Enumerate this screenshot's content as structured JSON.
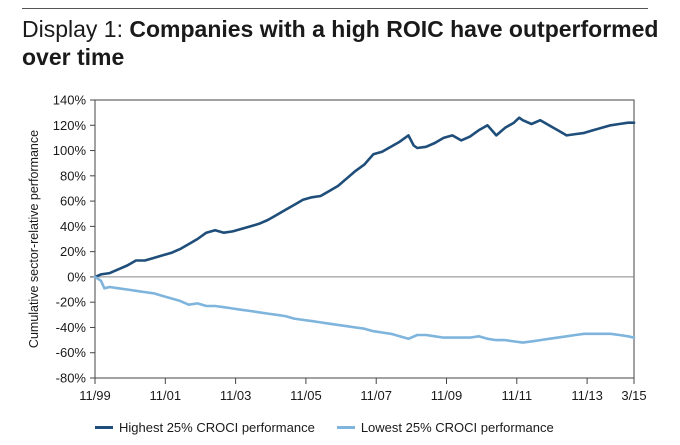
{
  "title": {
    "prefix": "Display 1: ",
    "main": "Companies with a high ROIC have outperformed over time"
  },
  "colors": {
    "highest": "#1e4e79",
    "lowest": "#7fb5dd",
    "axis": "#1a1a1a",
    "zero_line": "#888888"
  },
  "chart_data": {
    "type": "line",
    "title": "Companies with a high ROIC have outperformed over time",
    "xlabel": "",
    "ylabel": "Cumulative sector-relative performance",
    "x_range": [
      1999.833,
      2015.167
    ],
    "ylim": [
      -80,
      140
    ],
    "y_ticks": [
      140,
      120,
      100,
      80,
      60,
      40,
      20,
      0,
      -20,
      -40,
      -60,
      -80
    ],
    "y_tick_labels": [
      "140%",
      "120%",
      "100%",
      "80%",
      "60%",
      "40%",
      "20%",
      "0%",
      "-20%",
      "-40%",
      "-60%",
      "-80%"
    ],
    "x_ticks": [
      1999.833,
      2001.833,
      2003.833,
      2005.833,
      2007.833,
      2009.833,
      2011.833,
      2013.833,
      2015.167
    ],
    "x_tick_labels": [
      "11/99",
      "11/01",
      "11/03",
      "11/05",
      "11/07",
      "11/09",
      "11/11",
      "11/13",
      "3/15"
    ],
    "grid": false,
    "legend_position": "bottom",
    "series": [
      {
        "name": "Highest 25% CROCI performance",
        "x": [
          1999.833,
          2000.0,
          2000.25,
          2000.5,
          2000.75,
          2001.0,
          2001.25,
          2001.5,
          2001.75,
          2002.0,
          2002.25,
          2002.5,
          2002.75,
          2003.0,
          2003.25,
          2003.5,
          2003.75,
          2004.0,
          2004.25,
          2004.5,
          2004.75,
          2005.0,
          2005.25,
          2005.5,
          2005.75,
          2006.0,
          2006.25,
          2006.5,
          2006.75,
          2007.0,
          2007.25,
          2007.5,
          2007.75,
          2008.0,
          2008.25,
          2008.5,
          2008.75,
          2008.9,
          2009.0,
          2009.25,
          2009.5,
          2009.75,
          2010.0,
          2010.25,
          2010.5,
          2010.75,
          2011.0,
          2011.25,
          2011.5,
          2011.75,
          2011.9,
          2012.0,
          2012.25,
          2012.5,
          2012.75,
          2013.0,
          2013.25,
          2013.5,
          2013.75,
          2014.0,
          2014.25,
          2014.5,
          2014.75,
          2015.0,
          2015.167
        ],
        "values": [
          0,
          2,
          3,
          6,
          9,
          13,
          13,
          15,
          17,
          19,
          22,
          26,
          30,
          35,
          37,
          35,
          36,
          38,
          40,
          42,
          45,
          49,
          53,
          57,
          61,
          63,
          64,
          68,
          72,
          78,
          84,
          89,
          97,
          99,
          103,
          107,
          112,
          104,
          102,
          103,
          106,
          110,
          112,
          108,
          111,
          116,
          120,
          112,
          118,
          122,
          126,
          124,
          121,
          124,
          120,
          116,
          112,
          113,
          114,
          116,
          118,
          120,
          121,
          122,
          122
        ]
      },
      {
        "name": "Lowest 25% CROCI performance",
        "x": [
          1999.833,
          2000.0,
          2000.1,
          2000.25,
          2000.5,
          2000.75,
          2001.0,
          2001.25,
          2001.5,
          2001.75,
          2002.0,
          2002.25,
          2002.5,
          2002.75,
          2003.0,
          2003.25,
          2003.5,
          2003.75,
          2004.0,
          2004.25,
          2004.5,
          2004.75,
          2005.0,
          2005.25,
          2005.5,
          2005.75,
          2006.0,
          2006.25,
          2006.5,
          2006.75,
          2007.0,
          2007.25,
          2007.5,
          2007.75,
          2008.0,
          2008.25,
          2008.5,
          2008.75,
          2009.0,
          2009.25,
          2009.5,
          2009.75,
          2010.0,
          2010.25,
          2010.5,
          2010.75,
          2011.0,
          2011.25,
          2011.5,
          2011.75,
          2012.0,
          2012.25,
          2012.5,
          2012.75,
          2013.0,
          2013.25,
          2013.5,
          2013.75,
          2014.0,
          2014.25,
          2014.5,
          2014.75,
          2015.0,
          2015.167
        ],
        "values": [
          0,
          -3,
          -9,
          -8,
          -9,
          -10,
          -11,
          -12,
          -13,
          -15,
          -17,
          -19,
          -22,
          -21,
          -23,
          -23,
          -24,
          -25,
          -26,
          -27,
          -28,
          -29,
          -30,
          -31,
          -33,
          -34,
          -35,
          -36,
          -37,
          -38,
          -39,
          -40,
          -41,
          -43,
          -44,
          -45,
          -47,
          -49,
          -46,
          -46,
          -47,
          -48,
          -48,
          -48,
          -48,
          -47,
          -49,
          -50,
          -50,
          -51,
          -52,
          -51,
          -50,
          -49,
          -48,
          -47,
          -46,
          -45,
          -45,
          -45,
          -45,
          -46,
          -47,
          -48
        ]
      }
    ]
  },
  "legend": {
    "items": [
      {
        "label": "Highest 25% CROCI performance"
      },
      {
        "label": "Lowest 25% CROCI performance"
      }
    ]
  }
}
